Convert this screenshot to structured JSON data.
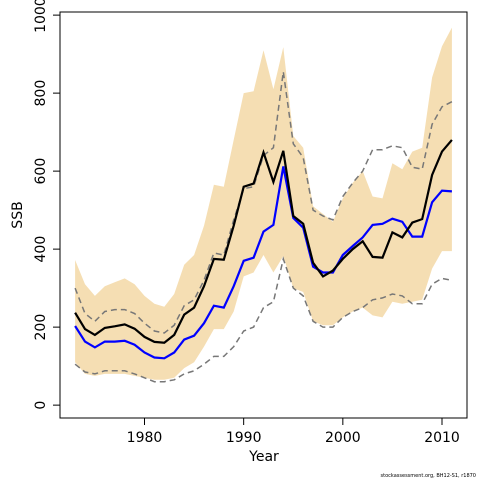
{
  "chart_data": {
    "type": "line",
    "x_label": "Year",
    "y_label": "SSB",
    "note": "stockassessment.org, BH12-S1, r1870",
    "x": [
      1973,
      1974,
      1975,
      1976,
      1977,
      1978,
      1979,
      1980,
      1981,
      1982,
      1983,
      1984,
      1985,
      1986,
      1987,
      1988,
      1989,
      1990,
      1991,
      1992,
      1993,
      1994,
      1995,
      1996,
      1997,
      1998,
      1999,
      2000,
      2001,
      2002,
      2003,
      2004,
      2005,
      2006,
      2007,
      2008,
      2009,
      2010,
      2011
    ],
    "xlim": [
      1971.48,
      2012.52
    ],
    "xticks": [
      1980,
      1990,
      2000,
      2010
    ],
    "ylim": [
      -33,
      1008
    ],
    "yticks": [
      0,
      200,
      400,
      600,
      800,
      1000
    ],
    "band": {
      "color": "#f5deb3",
      "upper": [
        372,
        310,
        280,
        305,
        315,
        325,
        310,
        280,
        260,
        252,
        285,
        360,
        385,
        460,
        565,
        560,
        680,
        800,
        805,
        910,
        810,
        918,
        690,
        660,
        510,
        490,
        470,
        530,
        570,
        600,
        535,
        530,
        620,
        605,
        650,
        660,
        840,
        920,
        968
      ],
      "lower": [
        110,
        80,
        75,
        80,
        80,
        80,
        75,
        70,
        65,
        65,
        70,
        95,
        110,
        150,
        195,
        195,
        240,
        330,
        340,
        385,
        340,
        382,
        300,
        290,
        215,
        205,
        205,
        225,
        240,
        250,
        230,
        225,
        265,
        260,
        265,
        270,
        350,
        395,
        395
      ]
    },
    "series": [
      {
        "color": "#777777",
        "dash": true,
        "values": [
          300,
          235,
          215,
          240,
          245,
          245,
          235,
          210,
          190,
          185,
          205,
          255,
          270,
          320,
          390,
          385,
          475,
          555,
          560,
          640,
          660,
          855,
          670,
          635,
          500,
          485,
          475,
          535,
          570,
          600,
          655,
          655,
          665,
          660,
          610,
          605,
          720,
          765,
          778
        ]
      },
      {
        "color": "#777777",
        "dash": true,
        "values": [
          105,
          85,
          80,
          88,
          88,
          88,
          80,
          70,
          60,
          60,
          65,
          80,
          88,
          105,
          125,
          125,
          150,
          190,
          200,
          250,
          265,
          375,
          300,
          280,
          215,
          200,
          200,
          225,
          240,
          250,
          270,
          275,
          285,
          280,
          260,
          260,
          310,
          325,
          320
        ]
      },
      {
        "color": "#0000ff",
        "dash": false,
        "values": [
          203,
          163,
          148,
          163,
          163,
          165,
          155,
          135,
          122,
          120,
          135,
          168,
          178,
          210,
          255,
          250,
          305,
          370,
          378,
          445,
          462,
          612,
          480,
          455,
          355,
          340,
          340,
          385,
          408,
          430,
          462,
          465,
          478,
          470,
          432,
          432,
          520,
          550,
          548
        ]
      },
      {
        "color": "#000000",
        "dash": false,
        "values": [
          237,
          195,
          180,
          198,
          202,
          207,
          196,
          175,
          162,
          160,
          180,
          232,
          250,
          305,
          375,
          373,
          460,
          560,
          568,
          648,
          572,
          652,
          485,
          465,
          365,
          330,
          345,
          375,
          400,
          420,
          380,
          378,
          443,
          430,
          468,
          477,
          590,
          650,
          680
        ]
      }
    ]
  }
}
